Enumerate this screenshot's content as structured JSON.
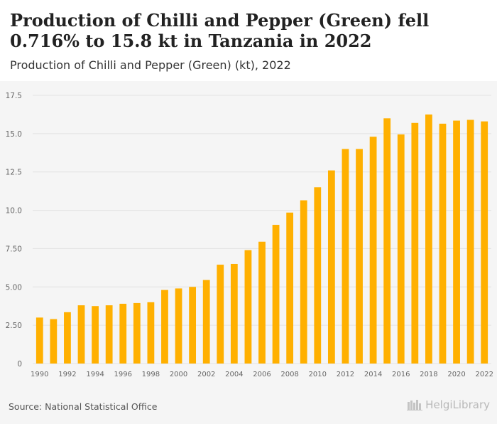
{
  "header": {
    "title": "Production of Chilli and Pepper (Green) fell 0.716% to 15.8 kt in Tanzania in 2022",
    "subtitle": "Production of Chilli and Pepper (Green) (kt), 2022"
  },
  "footer": {
    "source": "Source: National Statistical Office",
    "logo_text": "HelgiLibrary"
  },
  "colors": {
    "bar": "#FFB000",
    "grid": "#e2e2e2",
    "plot_bg": "#f5f5f5"
  },
  "chart_data": {
    "type": "bar",
    "title": "Production of Chilli and Pepper (Green) fell 0.716% to 15.8 kt in Tanzania in 2022",
    "subtitle": "Production of Chilli and Pepper (Green) (kt), 2022",
    "categories": [
      "1990",
      "1991",
      "1992",
      "1993",
      "1994",
      "1995",
      "1996",
      "1997",
      "1998",
      "1999",
      "2000",
      "2001",
      "2002",
      "2003",
      "2004",
      "2005",
      "2006",
      "2007",
      "2008",
      "2009",
      "2010",
      "2011",
      "2012",
      "2013",
      "2014",
      "2015",
      "2016",
      "2017",
      "2018",
      "2019",
      "2020",
      "2021",
      "2022"
    ],
    "values": [
      3.0,
      2.9,
      3.35,
      3.8,
      3.75,
      3.8,
      3.9,
      3.95,
      4.0,
      4.8,
      4.9,
      5.0,
      5.45,
      6.45,
      6.5,
      7.4,
      7.95,
      9.05,
      9.85,
      10.65,
      11.5,
      12.6,
      14.0,
      14.0,
      14.8,
      16.0,
      14.95,
      15.7,
      16.25,
      15.65,
      15.85,
      15.9,
      15.8
    ],
    "x_tick_labels": [
      "1990",
      "1992",
      "1994",
      "1996",
      "1998",
      "2000",
      "2002",
      "2004",
      "2006",
      "2008",
      "2010",
      "2012",
      "2014",
      "2016",
      "2018",
      "2020",
      "2022"
    ],
    "y_ticks": [
      {
        "value": 0,
        "label": "0"
      },
      {
        "value": 2.5,
        "label": "2.50"
      },
      {
        "value": 5,
        "label": "5.00"
      },
      {
        "value": 7.5,
        "label": "7.50"
      },
      {
        "value": 10,
        "label": "10.0"
      },
      {
        "value": 12.5,
        "label": "12.5"
      },
      {
        "value": 15,
        "label": "15.0"
      },
      {
        "value": 17.5,
        "label": "17.5"
      }
    ],
    "ylim": [
      0,
      17.5
    ],
    "xlabel": "",
    "ylabel": "",
    "grid": true,
    "legend": false
  }
}
